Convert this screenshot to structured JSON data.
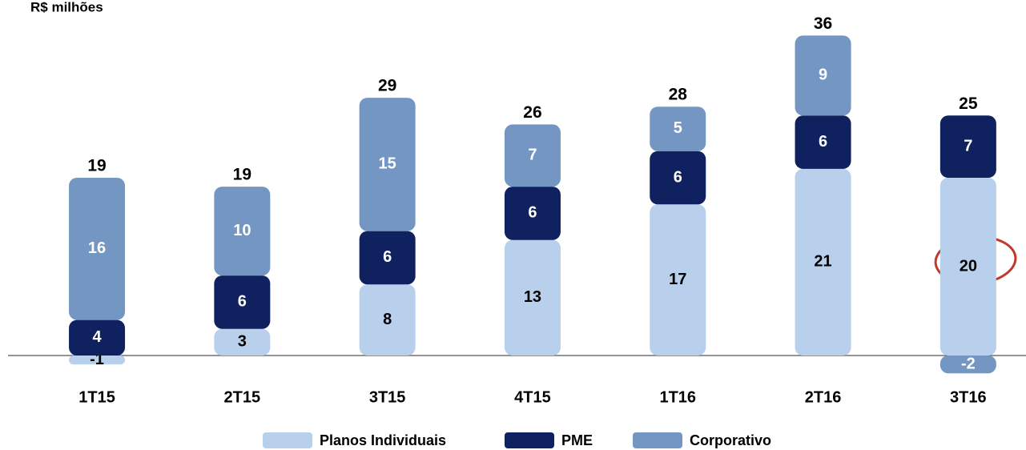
{
  "chart_data": {
    "type": "stacked_bar",
    "subtitle": "R$ milhões",
    "categories": [
      "1T15",
      "2T15",
      "3T15",
      "4T15",
      "1T16",
      "2T16",
      "3T16"
    ],
    "series": [
      {
        "name": "Planos Individuais",
        "color": "#b8d0ec",
        "label_color": "#000000",
        "values": [
          -1,
          3,
          8,
          13,
          17,
          21,
          20
        ]
      },
      {
        "name": "PME",
        "color": "#102160",
        "label_color": "#ffffff",
        "values": [
          4,
          6,
          6,
          6,
          6,
          6,
          7
        ]
      },
      {
        "name": "Corporativo",
        "color": "#7397c2",
        "label_color": "#ffffff",
        "values": [
          16,
          10,
          15,
          7,
          5,
          9,
          -2
        ]
      }
    ],
    "totals": [
      19,
      19,
      29,
      26,
      28,
      36,
      25
    ],
    "ylim": [
      -10,
      40
    ]
  }
}
